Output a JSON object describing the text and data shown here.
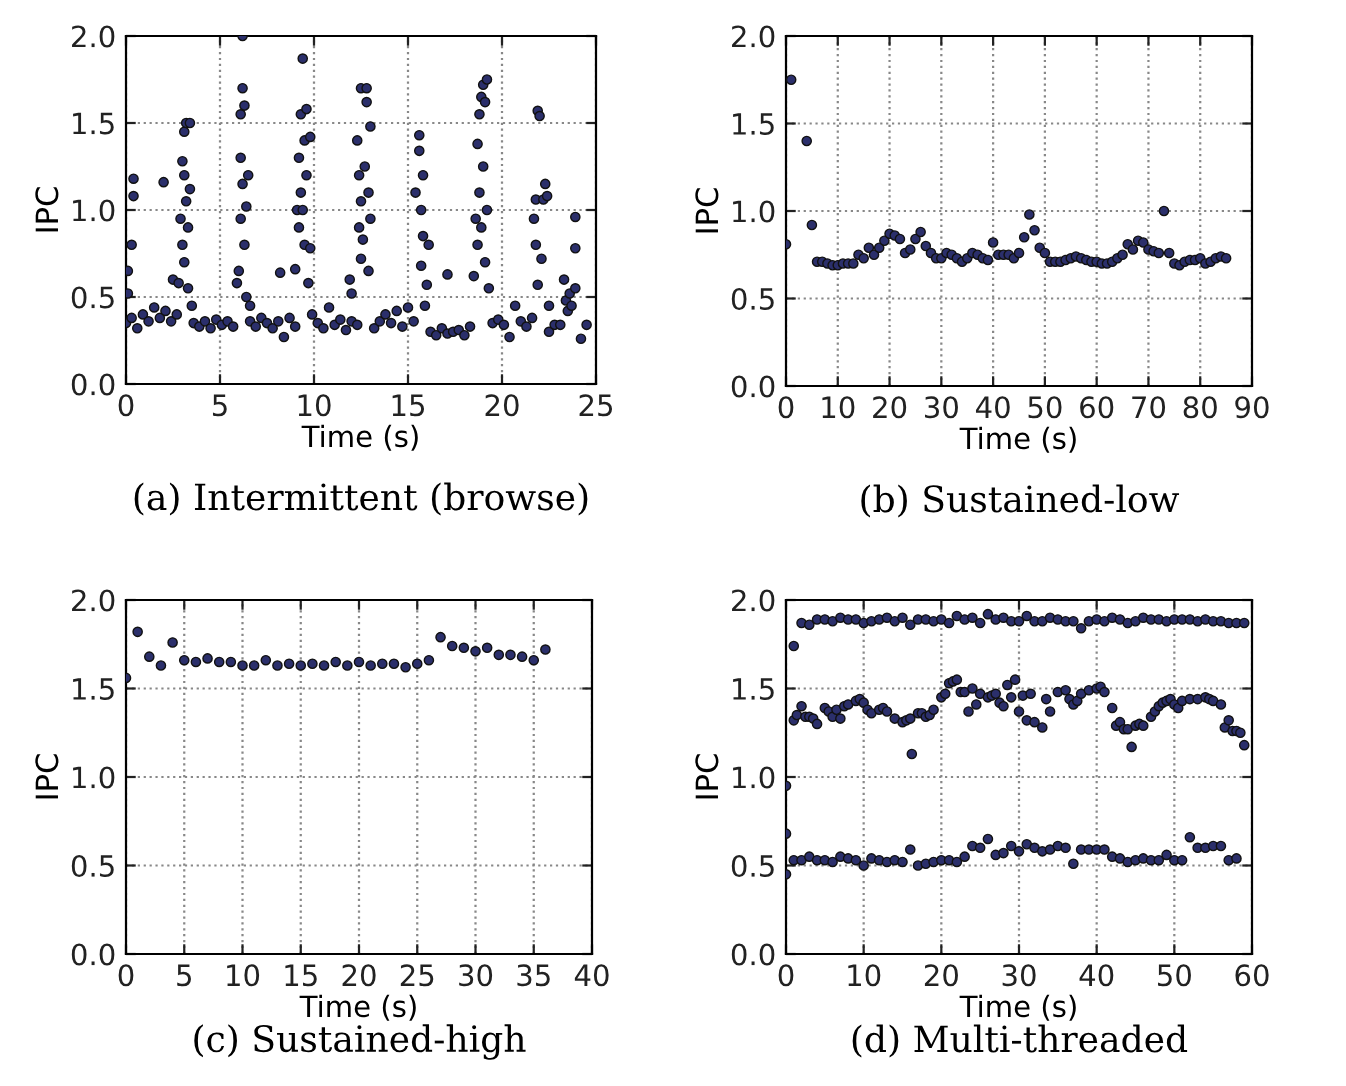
{
  "chart_data": [
    {
      "type": "scatter",
      "xlabel": "Time (s)",
      "ylabel": "IPC",
      "annotations": [
        "(a) Intermittent (browse)"
      ],
      "xlim": [
        0,
        25
      ],
      "ylim": [
        0,
        2
      ],
      "xticks": [
        0,
        5,
        10,
        15,
        20,
        25
      ],
      "yticks": [
        {
          "value": 0,
          "label": "0.0"
        },
        {
          "value": 0.5,
          "label": "0.5"
        },
        {
          "value": 1,
          "label": "1.0"
        },
        {
          "value": 1.5,
          "label": "1.5"
        },
        {
          "value": 2,
          "label": "2.0"
        }
      ],
      "grid": true,
      "marker": "circle",
      "series": [
        {
          "color": "#2b2f6b",
          "x": [
            0.0,
            0.3,
            0.6,
            0.9,
            1.2,
            1.5,
            1.8,
            2.1,
            2.4,
            2.7,
            3.6,
            3.9,
            4.2,
            4.5,
            4.8,
            5.1,
            5.4,
            5.7,
            6.6,
            6.9,
            7.2,
            7.5,
            7.8,
            8.1,
            8.4,
            8.7,
            9.0,
            9.9,
            10.2,
            10.5,
            10.8,
            11.1,
            11.4,
            11.7,
            12.0,
            12.3,
            13.2,
            13.5,
            13.8,
            14.1,
            14.4,
            14.7,
            15.0,
            15.3,
            16.2,
            16.5,
            16.8,
            17.1,
            17.4,
            17.7,
            18.0,
            18.3,
            19.5,
            19.8,
            20.1,
            20.4,
            20.7,
            21.0,
            21.3,
            21.6,
            22.5,
            22.8,
            23.1,
            23.4,
            23.5,
            23.6,
            23.7,
            23.9,
            24.2,
            24.5
          ],
          "values": [
            0.35,
            0.38,
            0.32,
            0.4,
            0.36,
            0.44,
            0.38,
            0.42,
            0.36,
            0.4,
            0.35,
            0.33,
            0.36,
            0.32,
            0.37,
            0.34,
            0.36,
            0.33,
            0.36,
            0.33,
            0.38,
            0.35,
            0.32,
            0.36,
            0.27,
            0.38,
            0.33,
            0.4,
            0.35,
            0.32,
            0.44,
            0.34,
            0.37,
            0.31,
            0.36,
            0.34,
            0.32,
            0.36,
            0.4,
            0.35,
            0.42,
            0.33,
            0.44,
            0.36,
            0.3,
            0.28,
            0.32,
            0.29,
            0.3,
            0.31,
            0.28,
            0.33,
            0.35,
            0.37,
            0.34,
            0.27,
            0.45,
            0.36,
            0.33,
            0.38,
            0.3,
            0.34,
            0.34,
            0.48,
            0.42,
            0.52,
            0.45,
            0.55,
            0.26,
            0.34
          ]
        },
        {
          "color": "#2b2f6b",
          "x": [
            0.1,
            0.1,
            0.3,
            0.4,
            0.4,
            2.0,
            2.5,
            2.8,
            2.9,
            3.0,
            3.0,
            3.1,
            3.1,
            3.1,
            3.2,
            3.2,
            3.3,
            3.3,
            3.4,
            3.4,
            3.5,
            5.9,
            6.0,
            6.1,
            6.1,
            6.1,
            6.2,
            6.2,
            6.2,
            6.3,
            6.3,
            6.4,
            6.4,
            6.5,
            6.6,
            8.2,
            9.0,
            9.1,
            9.2,
            9.2,
            9.3,
            9.3,
            9.4,
            9.4,
            9.5,
            9.5,
            9.6,
            9.6,
            9.7,
            9.8,
            9.8,
            11.9,
            12.0,
            12.3,
            12.4,
            12.4,
            12.5,
            12.5,
            12.5,
            12.6,
            12.7,
            12.8,
            12.8,
            12.9,
            12.9,
            13.0,
            13.0,
            15.4,
            15.6,
            15.6,
            15.7,
            15.7,
            15.8,
            15.8,
            15.9,
            16.0,
            16.1,
            17.1,
            18.5,
            18.6,
            18.7,
            18.7,
            18.8,
            18.8,
            18.9,
            18.9,
            19.0,
            19.0,
            19.1,
            19.1,
            19.2,
            19.2,
            19.3,
            21.7,
            21.8,
            21.8,
            21.9,
            21.9,
            22.0,
            22.1,
            22.2,
            22.3,
            22.4,
            22.5,
            23.3,
            23.9,
            23.9
          ],
          "values": [
            0.65,
            0.52,
            0.8,
            1.18,
            1.08,
            1.16,
            0.6,
            0.58,
            0.95,
            1.28,
            0.8,
            1.45,
            1.2,
            0.7,
            1.5,
            1.05,
            0.9,
            0.55,
            1.5,
            1.12,
            0.45,
            0.58,
            0.65,
            1.55,
            1.3,
            0.95,
            2.0,
            1.7,
            1.15,
            1.6,
            0.8,
            1.02,
            0.5,
            1.2,
            0.45,
            0.64,
            0.66,
            1.0,
            1.3,
            0.9,
            1.55,
            1.1,
            1.87,
            1.0,
            1.4,
            0.8,
            1.58,
            1.2,
            0.58,
            1.42,
            0.78,
            0.6,
            0.52,
            1.4,
            1.2,
            0.9,
            1.7,
            1.05,
            0.72,
            0.83,
            1.25,
            1.7,
            1.62,
            1.1,
            0.65,
            1.48,
            0.95,
            1.1,
            1.43,
            1.34,
            1.0,
            0.68,
            1.2,
            0.85,
            0.45,
            0.57,
            0.8,
            0.63,
            0.62,
            0.95,
            1.38,
            0.8,
            1.55,
            1.1,
            1.65,
            0.9,
            1.72,
            1.25,
            1.62,
            0.7,
            1.75,
            1.0,
            0.55,
            0.95,
            1.06,
            0.8,
            1.57,
            0.57,
            1.54,
            0.72,
            1.06,
            1.15,
            1.08,
            0.45,
            0.6,
            0.96,
            0.78
          ]
        }
      ]
    },
    {
      "type": "scatter",
      "xlabel": "Time (s)",
      "ylabel": "IPC",
      "annotations": [
        "(b) Sustained-low"
      ],
      "xlim": [
        0,
        90
      ],
      "ylim": [
        0,
        2
      ],
      "xticks": [
        0,
        10,
        20,
        30,
        40,
        50,
        60,
        70,
        80,
        90
      ],
      "yticks": [
        {
          "value": 0,
          "label": "0.0"
        },
        {
          "value": 0.5,
          "label": "0.5"
        },
        {
          "value": 1,
          "label": "1.0"
        },
        {
          "value": 1.5,
          "label": "1.5"
        },
        {
          "value": 2,
          "label": "2.0"
        }
      ],
      "grid": true,
      "marker": "circle",
      "series": [
        {
          "color": "#2b2f6b",
          "x": [
            0,
            1,
            4,
            5,
            6,
            7,
            8,
            9,
            10,
            11,
            12,
            13,
            14,
            15,
            16,
            17,
            18,
            19,
            20,
            21,
            22,
            23,
            24,
            25,
            26,
            27,
            28,
            29,
            30,
            31,
            32,
            33,
            34,
            35,
            36,
            37,
            38,
            39,
            40,
            41,
            42,
            43,
            44,
            45,
            46,
            47,
            48,
            49,
            50,
            51,
            52,
            53,
            54,
            55,
            56,
            57,
            58,
            59,
            60,
            61,
            62,
            63,
            64,
            65,
            66,
            67,
            68,
            69,
            70,
            71,
            72,
            73,
            74,
            75,
            76,
            77,
            78,
            79,
            80,
            81,
            82,
            83,
            84,
            85
          ],
          "values": [
            0.81,
            1.75,
            1.4,
            0.92,
            0.71,
            0.71,
            0.7,
            0.69,
            0.69,
            0.7,
            0.7,
            0.7,
            0.75,
            0.73,
            0.79,
            0.75,
            0.79,
            0.83,
            0.87,
            0.86,
            0.84,
            0.76,
            0.78,
            0.84,
            0.88,
            0.8,
            0.76,
            0.73,
            0.73,
            0.76,
            0.75,
            0.73,
            0.71,
            0.73,
            0.76,
            0.75,
            0.73,
            0.72,
            0.82,
            0.75,
            0.75,
            0.75,
            0.73,
            0.76,
            0.85,
            0.98,
            0.89,
            0.79,
            0.76,
            0.71,
            0.71,
            0.71,
            0.72,
            0.73,
            0.74,
            0.73,
            0.72,
            0.71,
            0.71,
            0.7,
            0.7,
            0.71,
            0.73,
            0.75,
            0.81,
            0.78,
            0.83,
            0.82,
            0.78,
            0.77,
            0.76,
            1.0,
            0.76,
            0.7,
            0.69,
            0.71,
            0.72,
            0.72,
            0.73,
            0.7,
            0.71,
            0.73,
            0.74,
            0.73
          ]
        }
      ]
    },
    {
      "type": "scatter",
      "xlabel": "Time (s)",
      "ylabel": "IPC",
      "annotations": [
        "(c) Sustained-high"
      ],
      "xlim": [
        0,
        40
      ],
      "ylim": [
        0,
        2
      ],
      "xticks": [
        0,
        5,
        10,
        15,
        20,
        25,
        30,
        35,
        40
      ],
      "yticks": [
        {
          "value": 0,
          "label": "0.0"
        },
        {
          "value": 0.5,
          "label": "0.5"
        },
        {
          "value": 1,
          "label": "1.0"
        },
        {
          "value": 1.5,
          "label": "1.5"
        },
        {
          "value": 2,
          "label": "2.0"
        }
      ],
      "grid": true,
      "marker": "circle",
      "series": [
        {
          "color": "#2b2f6b",
          "x": [
            0,
            1,
            2,
            3,
            4,
            5,
            6,
            7,
            8,
            9,
            10,
            11,
            12,
            13,
            14,
            15,
            16,
            17,
            18,
            19,
            20,
            21,
            22,
            23,
            24,
            25,
            26,
            27,
            28,
            29,
            30,
            31,
            32,
            33,
            34,
            35,
            36
          ],
          "values": [
            1.56,
            1.82,
            1.68,
            1.63,
            1.76,
            1.66,
            1.65,
            1.67,
            1.65,
            1.65,
            1.63,
            1.63,
            1.66,
            1.63,
            1.64,
            1.63,
            1.64,
            1.63,
            1.65,
            1.63,
            1.65,
            1.63,
            1.64,
            1.64,
            1.62,
            1.64,
            1.66,
            1.79,
            1.74,
            1.73,
            1.71,
            1.73,
            1.69,
            1.69,
            1.68,
            1.66,
            1.72
          ]
        }
      ]
    },
    {
      "type": "scatter",
      "xlabel": "Time (s)",
      "ylabel": "IPC",
      "annotations": [
        "(d) Multi-threaded"
      ],
      "xlim": [
        0,
        60
      ],
      "ylim": [
        0,
        2
      ],
      "xticks": [
        0,
        10,
        20,
        30,
        40,
        50,
        60
      ],
      "yticks": [
        {
          "value": 0,
          "label": "0.0"
        },
        {
          "value": 0.5,
          "label": "0.5"
        },
        {
          "value": 1,
          "label": "1.0"
        },
        {
          "value": 1.5,
          "label": "1.5"
        },
        {
          "value": 2,
          "label": "2.0"
        }
      ],
      "grid": true,
      "marker": "circle",
      "series": [
        {
          "color": "#2b2f6b",
          "x": [
            1,
            2,
            3,
            4,
            5,
            6,
            7,
            8,
            9,
            10,
            11,
            12,
            13,
            14,
            15,
            16,
            17,
            18,
            19,
            20,
            21,
            22,
            23,
            24,
            25,
            26,
            27,
            28,
            29,
            30,
            31,
            32,
            33,
            34,
            35,
            36,
            37,
            38,
            39,
            40,
            41,
            42,
            43,
            44,
            45,
            46,
            47,
            48,
            49,
            50,
            51,
            52,
            53,
            54,
            55,
            56,
            57,
            58,
            59
          ],
          "values": [
            1.74,
            1.87,
            1.86,
            1.89,
            1.89,
            1.88,
            1.9,
            1.89,
            1.89,
            1.87,
            1.88,
            1.89,
            1.9,
            1.88,
            1.9,
            1.86,
            1.89,
            1.89,
            1.88,
            1.89,
            1.87,
            1.91,
            1.89,
            1.9,
            1.87,
            1.92,
            1.89,
            1.9,
            1.88,
            1.88,
            1.91,
            1.88,
            1.88,
            1.9,
            1.89,
            1.88,
            1.88,
            1.84,
            1.88,
            1.89,
            1.88,
            1.9,
            1.89,
            1.87,
            1.88,
            1.9,
            1.89,
            1.89,
            1.88,
            1.89,
            1.89,
            1.89,
            1.88,
            1.89,
            1.88,
            1.88,
            1.87,
            1.87,
            1.87
          ]
        },
        {
          "color": "#2b2f6b",
          "x": [
            0,
            1,
            1.4,
            2,
            2.5,
            3,
            3.5,
            4,
            5,
            5.5,
            6,
            6.5,
            7,
            7.5,
            8,
            9,
            9.5,
            10,
            10.5,
            11,
            12,
            12.5,
            13,
            14,
            15,
            15.5,
            16,
            16.2,
            17,
            17.5,
            18,
            18.5,
            19,
            20,
            20.5,
            21,
            21.5,
            22,
            22.5,
            23,
            23.5,
            24,
            24.5,
            25,
            26,
            26.5,
            27,
            27.5,
            28,
            28.5,
            29,
            29.5,
            30,
            30.5,
            31,
            31.5,
            32,
            33,
            33.5,
            34,
            35,
            36,
            36.5,
            37,
            37.5,
            38,
            39,
            40,
            40.5,
            41,
            42,
            42.5,
            43,
            43.5,
            44,
            44.5,
            45,
            45.5,
            46,
            47,
            47.5,
            48,
            48.5,
            49,
            49.5,
            50,
            50.5,
            51,
            52,
            53,
            54,
            54.5,
            55,
            56,
            56.5,
            57,
            57.5,
            58,
            58.5,
            59
          ],
          "values": [
            0.95,
            1.32,
            1.35,
            1.4,
            1.34,
            1.34,
            1.33,
            1.3,
            1.39,
            1.37,
            1.34,
            1.38,
            1.33,
            1.4,
            1.41,
            1.43,
            1.44,
            1.42,
            1.38,
            1.36,
            1.38,
            1.39,
            1.37,
            1.33,
            1.31,
            1.32,
            1.33,
            1.13,
            1.36,
            1.36,
            1.34,
            1.35,
            1.38,
            1.45,
            1.47,
            1.53,
            1.54,
            1.55,
            1.48,
            1.48,
            1.37,
            1.5,
            1.41,
            1.47,
            1.45,
            1.46,
            1.47,
            1.42,
            1.4,
            1.52,
            1.45,
            1.55,
            1.37,
            1.46,
            1.32,
            1.47,
            1.31,
            1.28,
            1.44,
            1.37,
            1.48,
            1.49,
            1.44,
            1.41,
            1.43,
            1.47,
            1.49,
            1.5,
            1.51,
            1.48,
            1.39,
            1.29,
            1.31,
            1.27,
            1.27,
            1.17,
            1.29,
            1.3,
            1.29,
            1.34,
            1.37,
            1.4,
            1.42,
            1.43,
            1.44,
            1.41,
            1.39,
            1.43,
            1.44,
            1.44,
            1.45,
            1.44,
            1.43,
            1.41,
            1.28,
            1.32,
            1.26,
            1.26,
            1.25,
            1.18
          ]
        },
        {
          "color": "#2b2f6b",
          "x": [
            0,
            0,
            1,
            2,
            3,
            4,
            5,
            6,
            7,
            8,
            9,
            10,
            11,
            12,
            13,
            14,
            15,
            16,
            17,
            18,
            19,
            20,
            21,
            22,
            23,
            24,
            25,
            26,
            27,
            28,
            29,
            30,
            31,
            32,
            33,
            34,
            35,
            36,
            37,
            38,
            39,
            40,
            41,
            42,
            43,
            44,
            45,
            46,
            47,
            48,
            49,
            50,
            51,
            52,
            53,
            54,
            55,
            56,
            57,
            58
          ],
          "values": [
            0.68,
            0.45,
            0.53,
            0.53,
            0.55,
            0.53,
            0.53,
            0.52,
            0.55,
            0.54,
            0.53,
            0.5,
            0.54,
            0.53,
            0.52,
            0.53,
            0.52,
            0.59,
            0.5,
            0.51,
            0.52,
            0.53,
            0.53,
            0.52,
            0.55,
            0.61,
            0.6,
            0.65,
            0.56,
            0.57,
            0.61,
            0.58,
            0.62,
            0.6,
            0.58,
            0.59,
            0.61,
            0.6,
            0.51,
            0.59,
            0.59,
            0.59,
            0.59,
            0.55,
            0.54,
            0.52,
            0.53,
            0.54,
            0.53,
            0.53,
            0.56,
            0.53,
            0.53,
            0.66,
            0.6,
            0.6,
            0.61,
            0.61,
            0.53,
            0.54
          ]
        }
      ]
    }
  ]
}
